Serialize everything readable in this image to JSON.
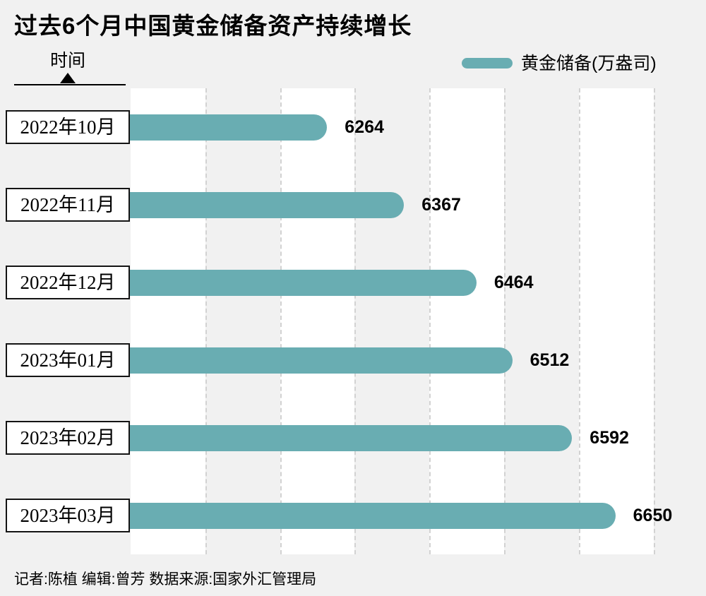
{
  "page": {
    "background": "#f1f1f1"
  },
  "chart_data": {
    "type": "bar",
    "orientation": "horizontal",
    "title": "过去6个月中国黄金储备资产持续增长",
    "ylabel": "时间",
    "xlabel": "",
    "legend": "黄金储备(万盎司)",
    "legend_position": "top-right",
    "categories": [
      "2022年10月",
      "2022年11月",
      "2022年12月",
      "2023年01月",
      "2023年02月",
      "2023年03月"
    ],
    "values": [
      6264,
      6367,
      6464,
      6512,
      6592,
      6650
    ],
    "xlim": [
      6000,
      6742
    ],
    "grid_step": 100,
    "grid": "dashed-vertical-with-alternating-bands",
    "bar_color": "#69adb2",
    "value_label_color": "#000000"
  },
  "footer": {
    "credits": "记者:陈植   编辑:曾芳   数据来源:国家外汇管理局"
  }
}
